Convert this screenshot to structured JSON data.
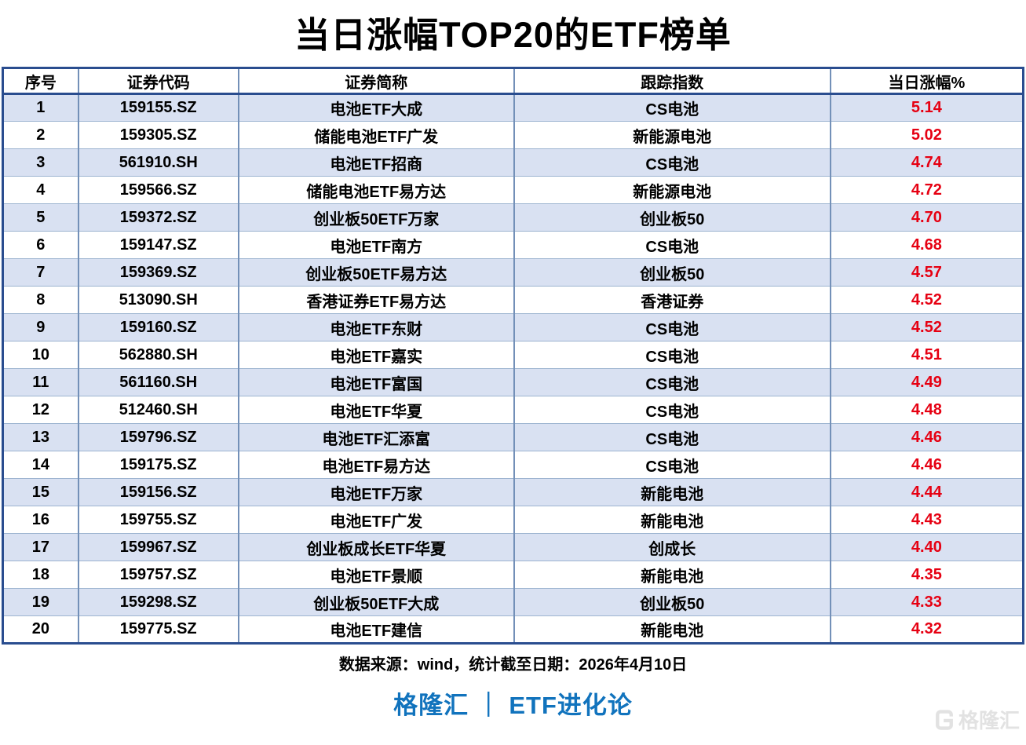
{
  "chart_data": {
    "type": "table",
    "title": "当日涨幅TOP20的ETF榜单",
    "columns": [
      "序号",
      "证券代码",
      "证券简称",
      "跟踪指数",
      "当日涨幅%"
    ],
    "rows": [
      [
        "1",
        "159155.SZ",
        "电池ETF大成",
        "CS电池",
        "5.14"
      ],
      [
        "2",
        "159305.SZ",
        "储能电池ETF广发",
        "新能源电池",
        "5.02"
      ],
      [
        "3",
        "561910.SH",
        "电池ETF招商",
        "CS电池",
        "4.74"
      ],
      [
        "4",
        "159566.SZ",
        "储能电池ETF易方达",
        "新能源电池",
        "4.72"
      ],
      [
        "5",
        "159372.SZ",
        "创业板50ETF万家",
        "创业板50",
        "4.70"
      ],
      [
        "6",
        "159147.SZ",
        "电池ETF南方",
        "CS电池",
        "4.68"
      ],
      [
        "7",
        "159369.SZ",
        "创业板50ETF易方达",
        "创业板50",
        "4.57"
      ],
      [
        "8",
        "513090.SH",
        "香港证券ETF易方达",
        "香港证券",
        "4.52"
      ],
      [
        "9",
        "159160.SZ",
        "电池ETF东财",
        "CS电池",
        "4.52"
      ],
      [
        "10",
        "562880.SH",
        "电池ETF嘉实",
        "CS电池",
        "4.51"
      ],
      [
        "11",
        "561160.SH",
        "电池ETF富国",
        "CS电池",
        "4.49"
      ],
      [
        "12",
        "512460.SH",
        "电池ETF华夏",
        "CS电池",
        "4.48"
      ],
      [
        "13",
        "159796.SZ",
        "电池ETF汇添富",
        "CS电池",
        "4.46"
      ],
      [
        "14",
        "159175.SZ",
        "电池ETF易方达",
        "CS电池",
        "4.46"
      ],
      [
        "15",
        "159156.SZ",
        "电池ETF万家",
        "新能电池",
        "4.44"
      ],
      [
        "16",
        "159755.SZ",
        "电池ETF广发",
        "新能电池",
        "4.43"
      ],
      [
        "17",
        "159967.SZ",
        "创业板成长ETF华夏",
        "创成长",
        "4.40"
      ],
      [
        "18",
        "159757.SZ",
        "电池ETF景顺",
        "新能电池",
        "4.35"
      ],
      [
        "19",
        "159298.SZ",
        "创业板50ETF大成",
        "创业板50",
        "4.33"
      ],
      [
        "20",
        "159775.SZ",
        "电池ETF建信",
        "新能电池",
        "4.32"
      ]
    ],
    "column_widths_pct": [
      7.4,
      15.7,
      27.0,
      31.0,
      18.9
    ],
    "layout_hints": {
      "alternating_row_shading": "odd rows shaded",
      "value_column_color": "red",
      "grid": true
    }
  },
  "footer": {
    "source": "数据来源：wind，统计截至日期：2026年4月10日",
    "brand": "格隆汇 ｜ ETF进化论",
    "watermark": "格隆汇"
  },
  "colors": {
    "row_alt": "#d9e1f2",
    "value_red": "#e60012",
    "brand_blue": "#1173bd",
    "border_outer": "#2a4d8f",
    "border_inner": "#7390b8",
    "border_row": "#9db4d0",
    "watermark_gray": "#e2e2e2"
  }
}
